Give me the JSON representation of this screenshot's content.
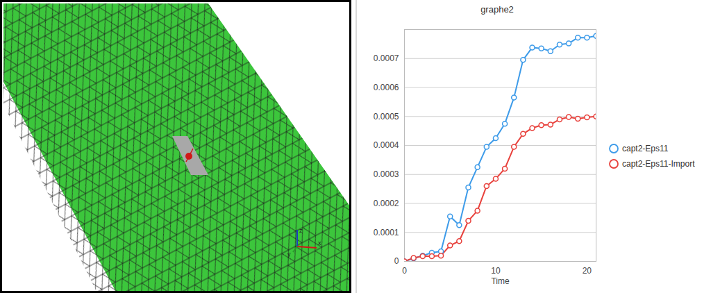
{
  "chart_data": {
    "type": "line",
    "title": "graphe2",
    "x_label": "Time",
    "x": [
      0,
      1,
      2,
      3,
      4,
      5,
      6,
      7,
      8,
      9,
      10,
      11,
      12,
      13,
      14,
      15,
      16,
      17,
      18,
      19,
      20,
      21
    ],
    "series": [
      {
        "name": "capt2-Eps11",
        "color": "#3d9be9",
        "marker": "circle",
        "values": [
          0,
          1e-05,
          2e-05,
          3e-05,
          3.5e-05,
          0.000155,
          0.000125,
          0.000255,
          0.000325,
          0.000395,
          0.000425,
          0.000475,
          0.000565,
          0.000695,
          0.000738,
          0.000735,
          0.000725,
          0.000748,
          0.000752,
          0.000772,
          0.000772,
          0.000778
        ]
      },
      {
        "name": "capt2-Eps11-Import",
        "color": "#e8413c",
        "marker": "circle",
        "values": [
          0,
          1.2e-05,
          1.8e-05,
          1.8e-05,
          2e-05,
          5.5e-05,
          7e-05,
          0.00014,
          0.000175,
          0.00026,
          0.000285,
          0.00032,
          0.000395,
          0.00044,
          0.00046,
          0.00047,
          0.000472,
          0.00049,
          0.000498,
          0.000492,
          0.000497,
          0.0005
        ]
      }
    ],
    "xlim": [
      0,
      21
    ],
    "xticks": [
      0,
      10,
      20
    ],
    "ylim": [
      0,
      0.0008
    ],
    "yticks": [
      0,
      0.0001,
      0.0002,
      0.0003,
      0.0004,
      0.0005,
      0.0006,
      0.0007
    ],
    "grid": true,
    "legend": "right"
  },
  "view": {
    "triad_labels": [
      "z",
      "y",
      "x"
    ]
  }
}
